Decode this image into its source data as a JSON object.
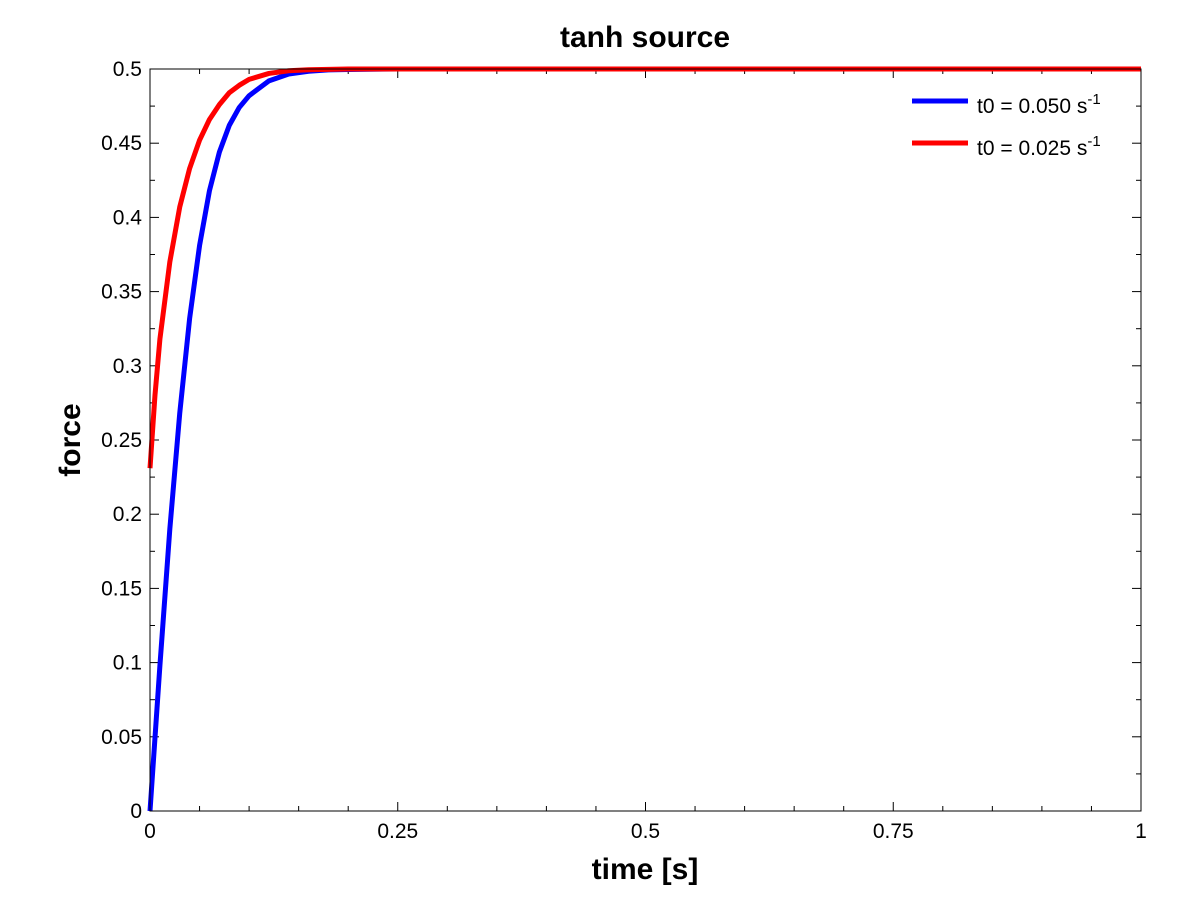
{
  "chart_data": {
    "type": "line",
    "title": "tanh source",
    "xlabel": "time [s]",
    "ylabel": "force",
    "xlim": [
      0,
      1
    ],
    "ylim": [
      0,
      0.5
    ],
    "x_ticks": [
      0,
      0.25,
      0.5,
      0.75,
      1
    ],
    "x_tick_labels": [
      "0",
      "0.25",
      "0.5",
      "0.75",
      "1"
    ],
    "y_ticks": [
      0,
      0.05,
      0.1,
      0.15,
      0.2,
      0.25,
      0.3,
      0.35,
      0.4,
      0.45,
      0.5
    ],
    "y_tick_labels": [
      "0",
      "0.05",
      "0.1",
      "0.15",
      "0.2",
      "0.25",
      "0.3",
      "0.35",
      "0.4",
      "0.45",
      "0.5"
    ],
    "grid": false,
    "legend_position": "top-right",
    "series": [
      {
        "name": "t0 = 0.050 s",
        "name_superscript": "-1",
        "color": "#0000ff",
        "x": [
          0,
          0.01,
          0.02,
          0.03,
          0.04,
          0.05,
          0.06,
          0.07,
          0.08,
          0.09,
          0.1,
          0.12,
          0.14,
          0.16,
          0.18,
          0.2,
          0.25,
          0.3,
          0.5,
          0.75,
          1.0
        ],
        "y": [
          0,
          0.098,
          0.19,
          0.268,
          0.332,
          0.381,
          0.418,
          0.444,
          0.462,
          0.474,
          0.482,
          0.492,
          0.4966,
          0.4985,
          0.4994,
          0.4997,
          0.5,
          0.5,
          0.5,
          0.5,
          0.5
        ]
      },
      {
        "name": "t0 = 0.025 s",
        "name_superscript": "-1",
        "color": "#ff0000",
        "x": [
          0,
          0.005,
          0.01,
          0.02,
          0.03,
          0.04,
          0.05,
          0.06,
          0.07,
          0.08,
          0.09,
          0.1,
          0.12,
          0.14,
          0.16,
          0.2,
          0.3,
          0.5,
          0.75,
          1.0
        ],
        "y": [
          0.231,
          0.28,
          0.318,
          0.37,
          0.407,
          0.433,
          0.452,
          0.466,
          0.476,
          0.484,
          0.489,
          0.493,
          0.497,
          0.4988,
          0.4995,
          0.5,
          0.5,
          0.5,
          0.5,
          0.5
        ]
      }
    ]
  }
}
